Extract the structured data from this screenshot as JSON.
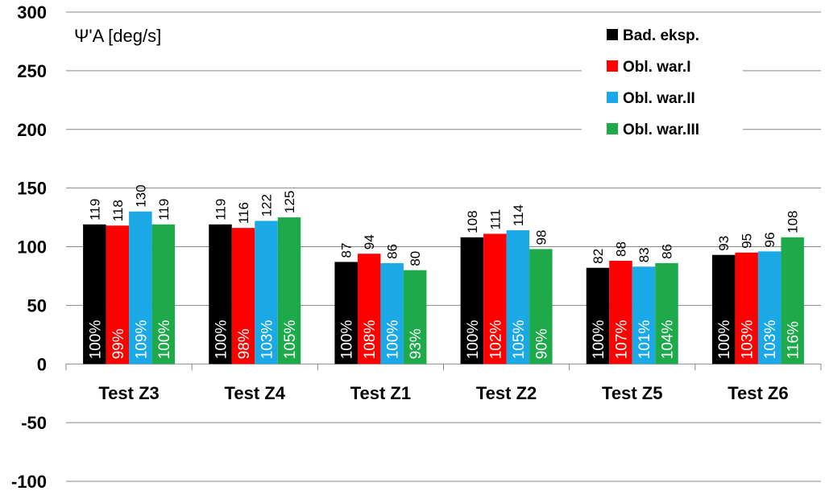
{
  "chart_data": {
    "type": "bar",
    "title": "",
    "ylabel": "Ψ'A [deg/s]",
    "xlabel": "",
    "ylim": [
      -100,
      300
    ],
    "yticks": [
      300,
      250,
      200,
      150,
      100,
      50,
      0,
      -50,
      -100
    ],
    "grid": true,
    "legend_position": "top-right",
    "categories": [
      "Test Z3",
      "Test Z4",
      "Test Z1",
      "Test Z2",
      "Test Z5",
      "Test Z6"
    ],
    "series": [
      {
        "name": "Bad. eksp.",
        "color": "#000000",
        "label_color": "#ffffff",
        "values": [
          119,
          119,
          87,
          108,
          82,
          93
        ],
        "percents": [
          "100%",
          "100%",
          "100%",
          "100%",
          "100%",
          "100%"
        ]
      },
      {
        "name": "Obl. war.I",
        "color": "#ff0000",
        "label_color": "#ffffff",
        "values": [
          118,
          116,
          94,
          111,
          88,
          95
        ],
        "percents": [
          "99%",
          "98%",
          "108%",
          "102%",
          "107%",
          "103%"
        ]
      },
      {
        "name": "Obl. war.II",
        "color": "#1aa9e6",
        "label_color": "#ffffff",
        "values": [
          130,
          122,
          86,
          114,
          83,
          96
        ],
        "percents": [
          "109%",
          "103%",
          "100%",
          "105%",
          "101%",
          "103%"
        ]
      },
      {
        "name": "Obl. war.III",
        "color": "#1ea94b",
        "label_color": "#ffffff",
        "values": [
          119,
          125,
          80,
          98,
          86,
          108
        ],
        "percents": [
          "100%",
          "105%",
          "93%",
          "90%",
          "104%",
          "116%"
        ]
      }
    ]
  }
}
